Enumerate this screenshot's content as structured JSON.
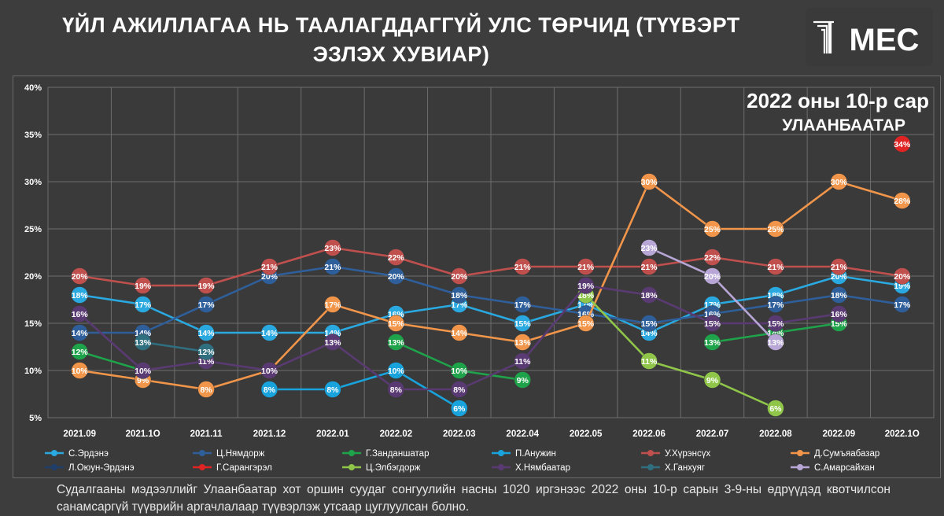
{
  "header": {
    "title_line1": "ҮЙЛ АЖИЛЛАГАА НЬ ТААЛАГДДАГГҮЙ УЛС ТӨРЧИД (ТҮҮВЭРТ",
    "title_line2": "ЭЗЛЭХ ХУВИАР)",
    "logo_text": "MEC"
  },
  "subheader": {
    "period": "2022 оны 10-р сар",
    "city": "УЛААНБААТАР"
  },
  "footer": {
    "note": "Судалгааны мэдээллийг Улаанбаатар хот оршин суудаг сонгуулийн насны 1020 иргэнээс 2022 оны 10-р сарын 3-9-ны өдрүүдэд квотчилсон санамсаргүй түүврийн аргачлалаар түүвэрлэж утсаар цуглуулсан болно."
  },
  "chart_data": {
    "type": "line",
    "categories": [
      "2021.09",
      "2021.1O",
      "2021.11",
      "2021.12",
      "2022.01",
      "2022.02",
      "2022.03",
      "2022.04",
      "2022.05",
      "2022.06",
      "2022.07",
      "2022.08",
      "2022.09",
      "2022.1O"
    ],
    "ylim": [
      5,
      40
    ],
    "yticks": [
      "5%",
      "10%",
      "15%",
      "20%",
      "25%",
      "30%",
      "35%",
      "40%"
    ],
    "ytick_values": [
      5,
      10,
      15,
      20,
      25,
      30,
      35,
      40
    ],
    "grid": true,
    "legend_position": "bottom",
    "series": [
      {
        "name": "С.Эрдэнэ",
        "color": "#29a9e0",
        "values": [
          18,
          17,
          14,
          14,
          14,
          16,
          17,
          15,
          17,
          14,
          17,
          18,
          20,
          19
        ]
      },
      {
        "name": "Ц.Нямдорж",
        "color": "#2f5f9a",
        "values": [
          14,
          14,
          17,
          20,
          21,
          20,
          18,
          17,
          16,
          15,
          16,
          17,
          18,
          17
        ]
      },
      {
        "name": "Г.Занданшатар",
        "color": "#1fa34a",
        "values": [
          12,
          10,
          null,
          null,
          null,
          13,
          10,
          9,
          null,
          null,
          13,
          14,
          15,
          null
        ]
      },
      {
        "name": "П.Анужин",
        "color": "#19a3dc",
        "values": [
          null,
          null,
          null,
          8,
          8,
          10,
          6,
          null,
          null,
          null,
          null,
          null,
          null,
          null
        ]
      },
      {
        "name": "У.Хүрэнсүх",
        "color": "#c0504d",
        "values": [
          20,
          19,
          19,
          21,
          23,
          22,
          20,
          21,
          21,
          21,
          22,
          21,
          21,
          20
        ]
      },
      {
        "name": "Д.Сумъяабазар",
        "color": "#f0954a",
        "values": [
          10,
          9,
          8,
          10,
          17,
          15,
          14,
          13,
          15,
          30,
          25,
          25,
          30,
          28
        ]
      },
      {
        "name": "Л.Оюун-Эрдэнэ",
        "color": "#1f3f6a",
        "values": [
          null,
          null,
          null,
          null,
          null,
          null,
          null,
          null,
          null,
          null,
          null,
          null,
          null,
          null
        ]
      },
      {
        "name": "Г.Сарангэрэл",
        "color": "#e02424",
        "values": [
          null,
          null,
          null,
          null,
          null,
          null,
          null,
          null,
          null,
          null,
          null,
          null,
          null,
          34
        ]
      },
      {
        "name": "Ц.Элбэгдорж",
        "color": "#8fc649",
        "values": [
          null,
          null,
          null,
          null,
          null,
          null,
          null,
          null,
          18,
          11,
          9,
          6,
          null,
          null
        ]
      },
      {
        "name": "Х.Нямбаатар",
        "color": "#5a3a72",
        "values": [
          16,
          10,
          11,
          10,
          13,
          8,
          8,
          11,
          19,
          18,
          15,
          15,
          16,
          null
        ]
      },
      {
        "name": "Х.Ганхуяг",
        "color": "#2f6f80",
        "values": [
          null,
          13,
          12,
          null,
          null,
          null,
          null,
          null,
          null,
          null,
          null,
          null,
          null,
          null
        ]
      },
      {
        "name": "С.Амарсайхан",
        "color": "#b8a7d6",
        "values": [
          null,
          null,
          null,
          null,
          null,
          null,
          null,
          null,
          null,
          23,
          20,
          13,
          null,
          null
        ]
      }
    ]
  }
}
